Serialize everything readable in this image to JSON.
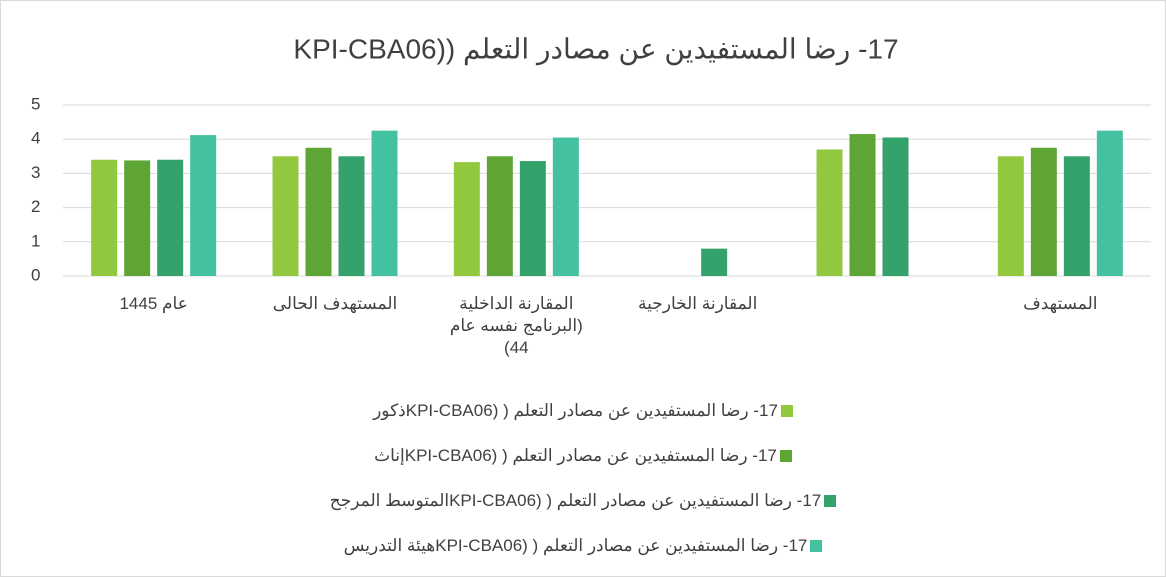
{
  "chart_data": {
    "type": "bar",
    "title": "17- رضا المستفيدين عن مصادر التعلم ((KPI-CBA06",
    "categories": [
      "عام 1445",
      "المستهدف الحالى",
      "المقارنة الداخلية (البرنامج نفسه عام 44)",
      "المقارنة الخارجية",
      null,
      "المستهدف"
    ],
    "series": [
      {
        "name": "17- رضا المستفيدين عن مصادر التعلم ( (KPI-CBA06ذكور",
        "color": "#92c83e",
        "values": [
          3.4,
          3.5,
          3.33,
          null,
          3.7,
          3.5
        ]
      },
      {
        "name": "17- رضا المستفيدين عن مصادر التعلم ( (KPI-CBA06إناث",
        "color": "#5ea536",
        "values": [
          3.38,
          3.75,
          3.5,
          null,
          4.15,
          3.75
        ]
      },
      {
        "name": "17- رضا المستفيدين عن مصادر التعلم ( (KPI-CBA06المتوسط المرجح",
        "color": "#34a26b",
        "values": [
          3.4,
          3.5,
          3.36,
          0.8,
          4.05,
          3.5
        ]
      },
      {
        "name": "17- رضا المستفيدين عن مصادر التعلم ( (KPI-CBA06هيئة التدريس",
        "color": "#44c1a1",
        "values": [
          4.12,
          4.25,
          4.05,
          null,
          null,
          4.25
        ]
      }
    ],
    "ylim": [
      0,
      5
    ],
    "yticks": [
      0,
      1,
      2,
      3,
      4,
      5
    ],
    "grid": true,
    "legend": "bottom"
  }
}
